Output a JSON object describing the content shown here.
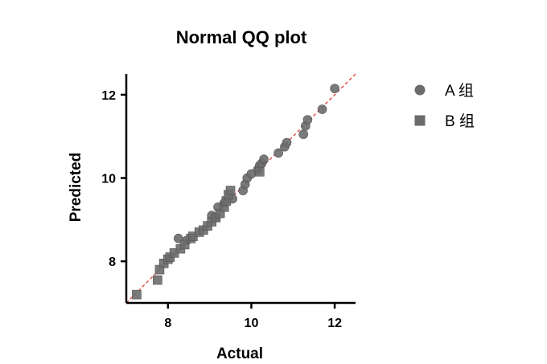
{
  "chart_data": {
    "type": "scatter",
    "title": "Normal QQ plot",
    "xlabel": "Actual",
    "ylabel": "Predicted",
    "xlim": [
      7.0,
      12.5
    ],
    "ylim": [
      7.0,
      12.5
    ],
    "xticks": [
      8,
      10,
      12
    ],
    "yticks": [
      8,
      10,
      12
    ],
    "xtick_labels": [
      "8",
      "10",
      "12"
    ],
    "ytick_labels": [
      "8",
      "10",
      "12"
    ],
    "reference_line": {
      "style": "dashed",
      "color": "#e53935",
      "from": [
        7.0,
        7.0
      ],
      "to": [
        12.5,
        12.5
      ]
    },
    "legend_position": "top-right",
    "series": [
      {
        "name": "A 组",
        "marker": "circle",
        "color": "#6b6b6b",
        "points": [
          [
            8.25,
            8.55
          ],
          [
            8.45,
            8.5
          ],
          [
            9.05,
            9.1
          ],
          [
            9.15,
            9.05
          ],
          [
            9.2,
            9.3
          ],
          [
            9.35,
            9.4
          ],
          [
            9.55,
            9.5
          ],
          [
            9.8,
            9.7
          ],
          [
            9.85,
            9.85
          ],
          [
            9.9,
            10.0
          ],
          [
            10.0,
            10.1
          ],
          [
            10.15,
            10.2
          ],
          [
            10.2,
            10.3
          ],
          [
            10.25,
            10.35
          ],
          [
            10.3,
            10.45
          ],
          [
            10.65,
            10.6
          ],
          [
            10.8,
            10.75
          ],
          [
            10.85,
            10.85
          ],
          [
            11.25,
            11.05
          ],
          [
            11.3,
            11.25
          ],
          [
            11.35,
            11.4
          ],
          [
            11.7,
            11.65
          ],
          [
            12.0,
            12.15
          ]
        ]
      },
      {
        "name": "B 组",
        "marker": "square",
        "color": "#6b6b6b",
        "points": [
          [
            7.25,
            7.2
          ],
          [
            7.75,
            7.55
          ],
          [
            7.8,
            7.8
          ],
          [
            7.9,
            7.95
          ],
          [
            8.0,
            8.05
          ],
          [
            8.05,
            8.1
          ],
          [
            8.15,
            8.2
          ],
          [
            8.3,
            8.3
          ],
          [
            8.4,
            8.4
          ],
          [
            8.55,
            8.55
          ],
          [
            8.6,
            8.6
          ],
          [
            8.75,
            8.7
          ],
          [
            8.85,
            8.75
          ],
          [
            8.95,
            8.85
          ],
          [
            9.05,
            8.95
          ],
          [
            9.15,
            9.05
          ],
          [
            9.25,
            9.15
          ],
          [
            9.35,
            9.3
          ],
          [
            9.4,
            9.45
          ],
          [
            9.45,
            9.6
          ],
          [
            9.5,
            9.7
          ],
          [
            10.2,
            10.15
          ]
        ]
      }
    ]
  }
}
